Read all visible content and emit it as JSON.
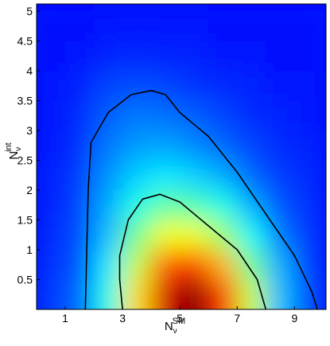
{
  "chart_data": {
    "type": "density-contour",
    "x_label": {
      "main": "N",
      "sub": "ν",
      "sup": "SM"
    },
    "y_label": {
      "main": "N",
      "sub": "ν",
      "sup": "int"
    },
    "xlim": [
      0,
      10.1
    ],
    "ylim": [
      0,
      5.12
    ],
    "xticks": [
      1,
      3,
      5,
      7,
      9
    ],
    "yticks": [
      0.5,
      1,
      1.5,
      2,
      2.5,
      3,
      3.5,
      4,
      4.5,
      5
    ],
    "colormap": "jet",
    "grid_x": [
      0.5,
      1.5,
      2.5,
      3.5,
      4.5,
      5.5,
      6.5,
      7.5,
      8.5,
      9.5
    ],
    "grid_y": [
      0.25,
      0.75,
      1.25,
      1.75,
      2.25,
      2.75,
      3.25,
      3.75,
      4.25,
      4.75
    ],
    "z": [
      [
        0.05,
        0.1,
        0.3,
        0.6,
        0.9,
        1.0,
        0.8,
        0.5,
        0.2,
        0.08
      ],
      [
        0.04,
        0.08,
        0.25,
        0.5,
        0.75,
        0.8,
        0.65,
        0.4,
        0.18,
        0.06
      ],
      [
        0.03,
        0.07,
        0.2,
        0.4,
        0.55,
        0.55,
        0.45,
        0.28,
        0.12,
        0.05
      ],
      [
        0.02,
        0.06,
        0.18,
        0.3,
        0.38,
        0.36,
        0.3,
        0.18,
        0.08,
        0.04
      ],
      [
        0.02,
        0.05,
        0.15,
        0.22,
        0.25,
        0.22,
        0.18,
        0.1,
        0.05,
        0.03
      ],
      [
        0.01,
        0.04,
        0.12,
        0.16,
        0.17,
        0.14,
        0.1,
        0.06,
        0.03,
        0.02
      ],
      [
        0.01,
        0.03,
        0.09,
        0.12,
        0.11,
        0.09,
        0.06,
        0.03,
        0.02,
        0.01
      ],
      [
        0.01,
        0.02,
        0.06,
        0.07,
        0.06,
        0.04,
        0.03,
        0.02,
        0.01,
        0.01
      ],
      [
        0,
        0.01,
        0.02,
        0.03,
        0.02,
        0.02,
        0.01,
        0.01,
        0,
        0
      ],
      [
        0,
        0,
        0.01,
        0.01,
        0.01,
        0.01,
        0,
        0,
        0,
        0
      ]
    ],
    "series": [
      {
        "color": "#000000",
        "x": [
          1.7,
          1.75,
          1.8,
          1.9,
          2.5,
          3.3,
          4.0,
          4.5,
          5.0,
          6.0,
          7.0,
          8.0,
          9.0,
          9.6,
          9.8
        ],
        "y": [
          0,
          1,
          2,
          2.8,
          3.3,
          3.6,
          3.67,
          3.6,
          3.3,
          2.9,
          2.3,
          1.6,
          0.9,
          0.3,
          0
        ]
      },
      {
        "color": "#000000",
        "x": [
          3.0,
          2.9,
          2.9,
          3.2,
          3.7,
          4.3,
          5.0,
          6.0,
          7.0,
          7.7,
          8.0
        ],
        "y": [
          0,
          0.5,
          0.9,
          1.5,
          1.85,
          1.93,
          1.8,
          1.4,
          1.0,
          0.5,
          0
        ]
      }
    ]
  }
}
